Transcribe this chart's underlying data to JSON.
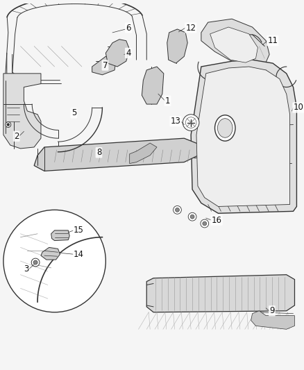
{
  "background_color": "#f5f5f5",
  "fig_width": 4.38,
  "fig_height": 5.33,
  "dpi": 100,
  "label_fontsize": 8.5,
  "label_color": "#111111",
  "line_color": "#333333",
  "line_width": 0.7,
  "gray_fill": "#cccccc",
  "mid_gray": "#aaaaaa",
  "dark_gray": "#888888",
  "light_gray": "#e8e8e8"
}
